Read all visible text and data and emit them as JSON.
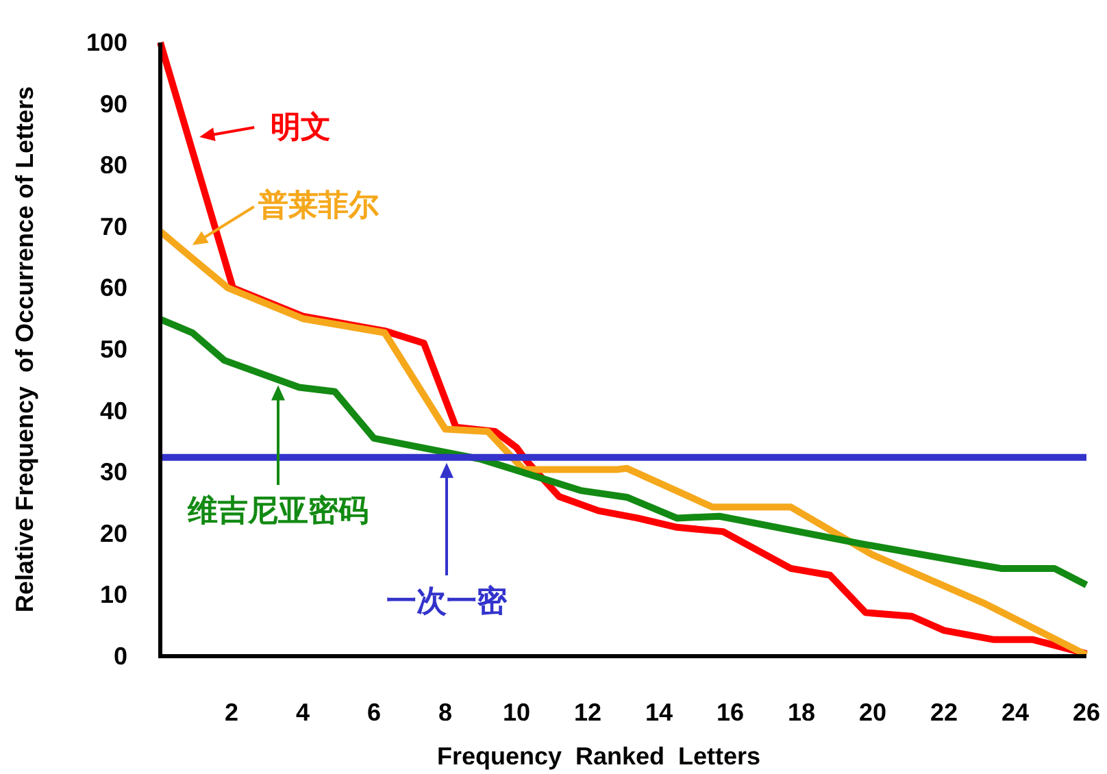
{
  "chart_data": {
    "type": "line",
    "xlabel": "Frequency  Ranked  Letters",
    "ylabel": "Relative Frequency  of Occurrence of Letters",
    "xlim": [
      0,
      26
    ],
    "ylim": [
      0,
      100
    ],
    "xticks": [
      2,
      4,
      6,
      8,
      10,
      12,
      14,
      16,
      18,
      20,
      22,
      24,
      26
    ],
    "yticks": [
      0,
      10,
      20,
      30,
      40,
      50,
      60,
      70,
      80,
      90,
      100
    ],
    "grid": false,
    "marker": "none",
    "line_style": "solid",
    "series": [
      {
        "color": "#ff0000",
        "x": [
          0,
          2.04,
          4,
          6.3,
          7.4,
          8.3,
          9.4,
          10.0,
          10.3,
          11.2,
          12.3,
          13.4,
          14.5,
          15.8,
          17.7,
          18.8,
          19.8,
          21.1,
          22,
          23.4,
          24.5,
          26
        ],
        "values": [
          100,
          60,
          55.4,
          53,
          51,
          37.3,
          36.6,
          34,
          31.7,
          26,
          23.7,
          22.5,
          21,
          20.3,
          14.3,
          13.2,
          7.1,
          6.5,
          4.2,
          2.7,
          2.7,
          0.4
        ]
      },
      {
        "color": "#f5a81c",
        "x": [
          0,
          1.9,
          4,
          6.3,
          8.0,
          9.2,
          10.2,
          12.8,
          13.1,
          15.5,
          17.7,
          20,
          23.1,
          26
        ],
        "values": [
          69.2,
          60,
          55,
          52.7,
          37,
          36.6,
          30.4,
          30.4,
          30.6,
          24.3,
          24.3,
          16.5,
          8.7,
          0.2
        ]
      },
      {
        "color": "#138a13",
        "x": [
          0,
          0.9,
          1.8,
          3.9,
          4.9,
          6,
          9,
          11.8,
          13.1,
          14.5,
          15.7,
          19.7,
          22.5,
          23.6,
          25.1,
          26
        ],
        "values": [
          54.9,
          52.7,
          48.2,
          43.8,
          43.1,
          35.5,
          32.1,
          27,
          25.9,
          22.5,
          22.8,
          18.3,
          15.4,
          14.3,
          14.3,
          11.6
        ]
      },
      {
        "color": "#3333cc",
        "x": [
          0,
          26
        ],
        "values": [
          32.4,
          32.4
        ]
      }
    ],
    "annotations": [
      {
        "text": "明文",
        "x": 1.1,
        "y": 84.6
      },
      {
        "text": "普莱菲尔",
        "x": 0.9,
        "y": 67
      },
      "维吉尼亚密码",
      "一次一密"
    ]
  }
}
